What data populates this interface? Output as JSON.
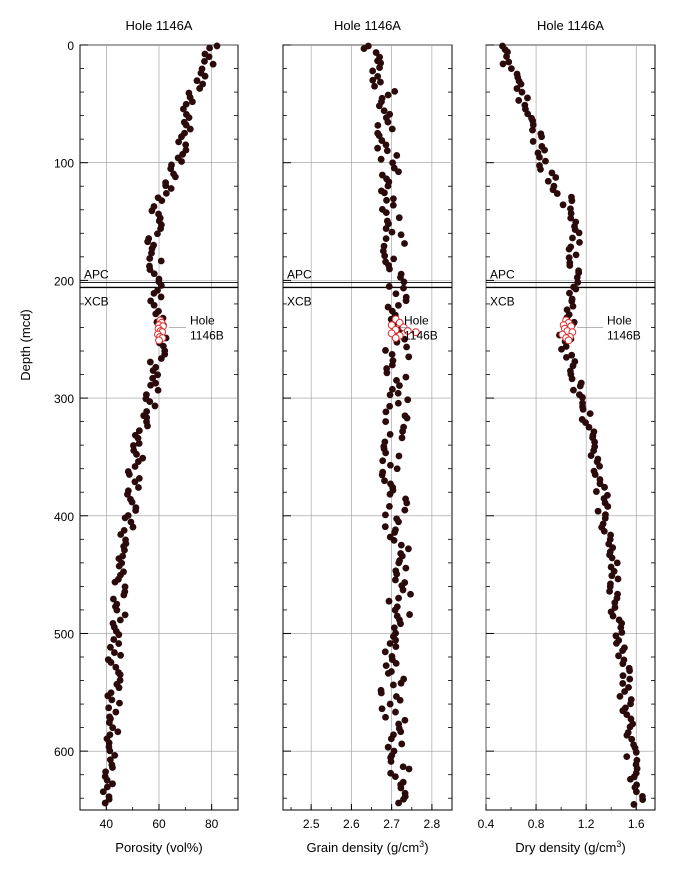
{
  "figure": {
    "y_axis_label": "Depth (mcd)",
    "apc_label": "APC",
    "xcb_label": "XCB",
    "boundary_depth": 206,
    "hole_b_label_line1": "Hole",
    "hole_b_label_line2": "1146B"
  },
  "chart_data": [
    {
      "type": "scatter",
      "title": "Hole 1146A",
      "xlabel": "Porosity (vol%)",
      "ylabel": "Depth (mcd)",
      "xlim": [
        30,
        90
      ],
      "ylim": [
        650,
        0
      ],
      "xticks": [
        40,
        60,
        80
      ],
      "xtick_labels": [
        "40",
        "60",
        "80"
      ],
      "yticks": [
        0,
        100,
        200,
        300,
        400,
        500,
        600
      ],
      "grid": true,
      "series": [
        {
          "name": "Hole 1146A",
          "marker": "filled",
          "color": "#2a0a0a",
          "depth_profile": [
            [
              0,
              80
            ],
            [
              20,
              78
            ],
            [
              40,
              73
            ],
            [
              60,
              71
            ],
            [
              80,
              70
            ],
            [
              100,
              66
            ],
            [
              120,
              63
            ],
            [
              130,
              60
            ],
            [
              160,
              58
            ],
            [
              200,
              59
            ],
            [
              210,
              59
            ],
            [
              240,
              60
            ],
            [
              255,
              61
            ],
            [
              270,
              59
            ],
            [
              300,
              57
            ],
            [
              330,
              53
            ],
            [
              370,
              50
            ],
            [
              400,
              49
            ],
            [
              430,
              46
            ],
            [
              470,
              45
            ],
            [
              500,
              45
            ],
            [
              520,
              43
            ],
            [
              560,
              43
            ],
            [
              600,
              42
            ],
            [
              645,
              40
            ]
          ],
          "scatter_spread": 2.5,
          "n_points": 190
        }
      ],
      "overlay_series": [
        {
          "name": "Hole 1146B",
          "marker": "open",
          "color": "#e03030",
          "points": [
            [
              60.5,
              234
            ],
            [
              61.0,
              236
            ],
            [
              60.0,
              238
            ],
            [
              61.5,
              239
            ],
            [
              59.8,
              241
            ],
            [
              60.6,
              243
            ],
            [
              61.2,
              244
            ],
            [
              59.6,
              246
            ],
            [
              60.4,
              248
            ],
            [
              61.3,
              249
            ],
            [
              60.0,
              251
            ]
          ]
        }
      ]
    },
    {
      "type": "scatter",
      "title": "Hole 1146A",
      "xlabel": "Grain density (g/cm",
      "xlabel_sup": "3",
      "xlabel_end": ")",
      "xlim": [
        2.43,
        2.85
      ],
      "ylim": [
        650,
        0
      ],
      "xticks": [
        2.5,
        2.6,
        2.7,
        2.8
      ],
      "xtick_labels": [
        "2.5",
        "2.6",
        "2.7",
        "2.8"
      ],
      "yticks": [
        0,
        100,
        200,
        300,
        400,
        500,
        600
      ],
      "grid": true,
      "series": [
        {
          "name": "Hole 1146A",
          "marker": "filled",
          "color": "#2a0a0a",
          "depth_profile": [
            [
              0,
              2.65
            ],
            [
              20,
              2.68
            ],
            [
              60,
              2.69
            ],
            [
              100,
              2.69
            ],
            [
              150,
              2.7
            ],
            [
              200,
              2.71
            ],
            [
              250,
              2.71
            ],
            [
              300,
              2.72
            ],
            [
              350,
              2.7
            ],
            [
              400,
              2.71
            ],
            [
              450,
              2.72
            ],
            [
              500,
              2.72
            ],
            [
              550,
              2.7
            ],
            [
              600,
              2.71
            ],
            [
              645,
              2.72
            ]
          ],
          "scatter_spread": 0.03,
          "n_points": 200
        }
      ],
      "overlay_series": [
        {
          "name": "Hole 1146B",
          "marker": "open",
          "color": "#e03030",
          "points": [
            [
              2.71,
              233
            ],
            [
              2.72,
              236
            ],
            [
              2.7,
              238
            ],
            [
              2.73,
              240
            ],
            [
              2.71,
              242
            ],
            [
              2.74,
              243
            ],
            [
              2.7,
              245
            ],
            [
              2.72,
              247
            ],
            [
              2.71,
              249
            ],
            [
              2.76,
              244
            ]
          ]
        }
      ]
    },
    {
      "type": "scatter",
      "title": "Hole 1146A",
      "xlabel": "Dry density (g/cm",
      "xlabel_sup": "3",
      "xlabel_end": ")",
      "xlim": [
        0.4,
        1.75
      ],
      "ylim": [
        650,
        0
      ],
      "xticks": [
        0.4,
        0.8,
        1.2,
        1.6
      ],
      "xtick_labels": [
        "0.4",
        "0.8",
        "1.2",
        "1.6"
      ],
      "yticks": [
        0,
        100,
        200,
        300,
        400,
        500,
        600
      ],
      "grid": true,
      "series": [
        {
          "name": "Hole 1146A",
          "marker": "filled",
          "color": "#2a0a0a",
          "depth_profile": [
            [
              0,
              0.5
            ],
            [
              20,
              0.6
            ],
            [
              40,
              0.68
            ],
            [
              60,
              0.75
            ],
            [
              80,
              0.8
            ],
            [
              100,
              0.85
            ],
            [
              120,
              0.95
            ],
            [
              130,
              1.05
            ],
            [
              160,
              1.1
            ],
            [
              200,
              1.1
            ],
            [
              210,
              1.08
            ],
            [
              240,
              1.05
            ],
            [
              255,
              1.02
            ],
            [
              270,
              1.08
            ],
            [
              300,
              1.15
            ],
            [
              330,
              1.25
            ],
            [
              370,
              1.3
            ],
            [
              400,
              1.35
            ],
            [
              430,
              1.4
            ],
            [
              470,
              1.43
            ],
            [
              500,
              1.45
            ],
            [
              520,
              1.5
            ],
            [
              560,
              1.52
            ],
            [
              600,
              1.55
            ],
            [
              645,
              1.62
            ]
          ],
          "scatter_spread": 0.05,
          "n_points": 190
        }
      ],
      "overlay_series": [
        {
          "name": "Hole 1146B",
          "marker": "open",
          "color": "#e03030",
          "points": [
            [
              1.04,
              234
            ],
            [
              1.06,
              236
            ],
            [
              1.02,
              238
            ],
            [
              1.08,
              239
            ],
            [
              1.03,
              241
            ],
            [
              1.05,
              243
            ],
            [
              1.09,
              244
            ],
            [
              1.01,
              246
            ],
            [
              1.07,
              248
            ],
            [
              1.04,
              249
            ],
            [
              1.06,
              251
            ]
          ]
        }
      ]
    }
  ]
}
